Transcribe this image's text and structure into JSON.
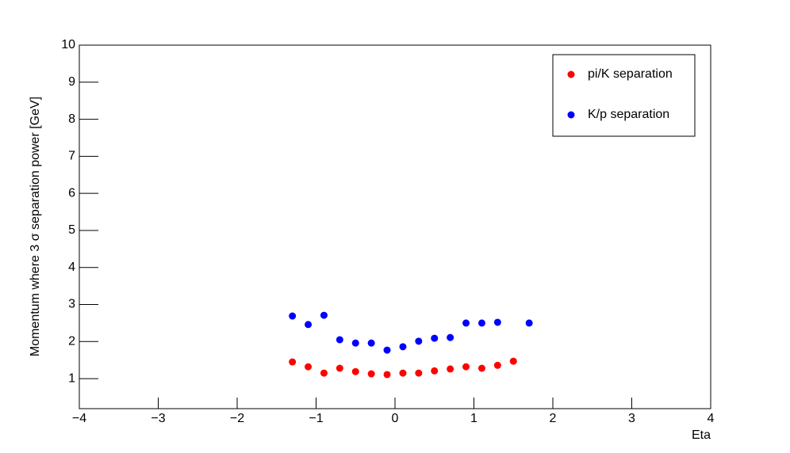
{
  "chart_data": {
    "type": "scatter",
    "x_label": "Eta",
    "y_label": "Momentum where 3 σ separation power [GeV]",
    "xlim": [
      -4,
      4
    ],
    "xticks": [
      {
        "value": -4,
        "label": "−4"
      },
      {
        "value": -3,
        "label": "−3"
      },
      {
        "value": -2,
        "label": "−2"
      },
      {
        "value": -1,
        "label": "−1"
      },
      0,
      1,
      2,
      3,
      4
    ],
    "ylim": [
      0.19,
      10
    ],
    "yticks": [
      1,
      2,
      3,
      4,
      5,
      6,
      7,
      8,
      9,
      10
    ],
    "legend": "top-right",
    "series": [
      {
        "name": "pi/K separation",
        "color": "#ff0000",
        "x": [
          -1.3,
          -1.1,
          -0.9,
          -0.7,
          -0.5,
          -0.3,
          -0.1,
          0.1,
          0.3,
          0.5,
          0.7,
          0.9,
          1.1,
          1.3,
          1.5
        ],
        "values": [
          1.45,
          1.32,
          1.15,
          1.28,
          1.19,
          1.13,
          1.11,
          1.15,
          1.15,
          1.21,
          1.26,
          1.32,
          1.28,
          1.36,
          1.47
        ]
      },
      {
        "name": "K/p separation",
        "color": "#0000ff",
        "x": [
          -1.3,
          -1.1,
          -0.9,
          -0.7,
          -0.5,
          -0.3,
          -0.1,
          0.1,
          0.3,
          0.5,
          0.7,
          0.9,
          1.1,
          1.3,
          1.7
        ],
        "values": [
          2.69,
          2.46,
          2.71,
          2.05,
          1.96,
          1.96,
          1.77,
          1.86,
          2.01,
          2.09,
          2.11,
          2.5,
          2.5,
          2.52,
          2.5
        ]
      }
    ]
  }
}
